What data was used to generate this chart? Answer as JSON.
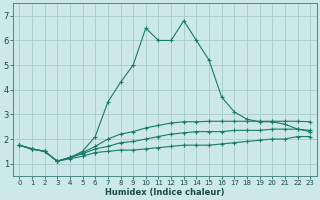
{
  "xlabel": "Humidex (Indice chaleur)",
  "background_color": "#cce8e8",
  "grid_color": "#aacccc",
  "line_color": "#1a7a6e",
  "xlim": [
    0,
    23
  ],
  "ylim": [
    0.5,
    7.5
  ],
  "xticks": [
    0,
    1,
    2,
    3,
    4,
    5,
    6,
    7,
    8,
    9,
    10,
    11,
    12,
    13,
    14,
    15,
    16,
    17,
    18,
    19,
    20,
    21,
    22,
    23
  ],
  "yticks": [
    1,
    2,
    3,
    4,
    5,
    6,
    7
  ],
  "series": [
    {
      "x": [
        0,
        1,
        2,
        3,
        4,
        5,
        6,
        7,
        8,
        9,
        10,
        11,
        12,
        13,
        14,
        15,
        16,
        17,
        18,
        19,
        20,
        21,
        22,
        23
      ],
      "y": [
        1.75,
        1.58,
        1.5,
        1.1,
        1.2,
        1.3,
        1.45,
        1.5,
        1.55,
        1.55,
        1.6,
        1.65,
        1.7,
        1.75,
        1.75,
        1.75,
        1.8,
        1.85,
        1.9,
        1.95,
        2.0,
        2.0,
        2.1,
        2.1
      ]
    },
    {
      "x": [
        0,
        1,
        2,
        3,
        4,
        5,
        6,
        7,
        8,
        9,
        10,
        11,
        12,
        13,
        14,
        15,
        16,
        17,
        18,
        19,
        20,
        21,
        22,
        23
      ],
      "y": [
        1.75,
        1.6,
        1.5,
        1.1,
        1.25,
        1.4,
        1.6,
        1.7,
        1.85,
        1.9,
        2.0,
        2.1,
        2.2,
        2.25,
        2.3,
        2.3,
        2.3,
        2.35,
        2.35,
        2.35,
        2.4,
        2.4,
        2.4,
        2.35
      ]
    },
    {
      "x": [
        0,
        1,
        2,
        3,
        4,
        5,
        6,
        7,
        8,
        9,
        10,
        11,
        12,
        13,
        14,
        15,
        16,
        17,
        18,
        19,
        20,
        21,
        22,
        23
      ],
      "y": [
        1.75,
        1.6,
        1.5,
        1.1,
        1.25,
        1.45,
        1.7,
        2.0,
        2.2,
        2.3,
        2.45,
        2.55,
        2.65,
        2.7,
        2.7,
        2.72,
        2.72,
        2.72,
        2.72,
        2.72,
        2.72,
        2.72,
        2.72,
        2.7
      ]
    },
    {
      "x": [
        0,
        1,
        2,
        3,
        4,
        5,
        6,
        7,
        8,
        9,
        10,
        11,
        12,
        13,
        14,
        15,
        16,
        17,
        18,
        19,
        20,
        21,
        22,
        23
      ],
      "y": [
        1.75,
        1.6,
        1.5,
        1.1,
        1.25,
        1.5,
        2.1,
        3.5,
        4.3,
        5.0,
        6.5,
        6.0,
        6.0,
        6.8,
        6.0,
        5.2,
        3.7,
        3.1,
        2.8,
        2.7,
        2.7,
        2.6,
        2.4,
        2.3
      ]
    }
  ]
}
